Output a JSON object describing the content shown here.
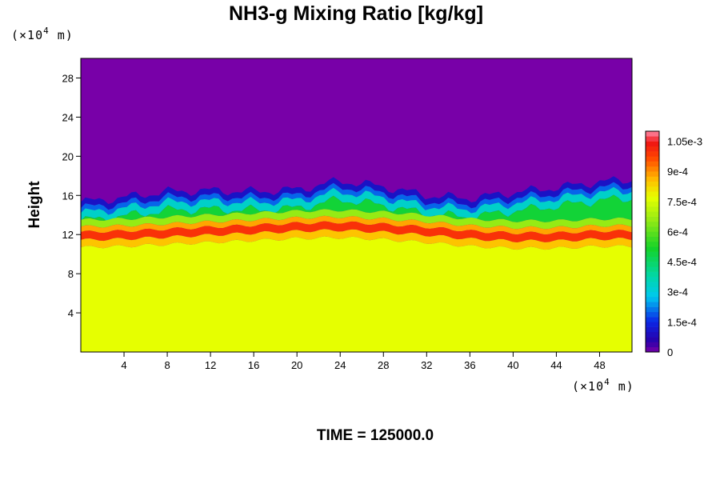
{
  "chart_data": {
    "type": "heatmap",
    "title": "NH3-g Mixing Ratio [kg/kg]",
    "xlabel": "",
    "ylabel": "Height",
    "x_unit": {
      "prefix": "(×10",
      "exp": "4",
      "suffix": " m)"
    },
    "y_unit": {
      "prefix": "(×10",
      "exp": "4",
      "suffix": " m)"
    },
    "xlim": [
      0,
      51
    ],
    "ylim": [
      0,
      30
    ],
    "x_ticks": [
      {
        "value": 4,
        "label": "4"
      },
      {
        "value": 8,
        "label": "8"
      },
      {
        "value": 12,
        "label": "12"
      },
      {
        "value": 16,
        "label": "16"
      },
      {
        "value": 20,
        "label": "20"
      },
      {
        "value": 24,
        "label": "24"
      },
      {
        "value": 28,
        "label": "28"
      },
      {
        "value": 32,
        "label": "32"
      },
      {
        "value": 36,
        "label": "36"
      },
      {
        "value": 40,
        "label": "40"
      },
      {
        "value": 44,
        "label": "44"
      },
      {
        "value": 48,
        "label": "48"
      }
    ],
    "y_ticks": [
      {
        "value": 4,
        "label": "4"
      },
      {
        "value": 8,
        "label": "8"
      },
      {
        "value": 12,
        "label": "12"
      },
      {
        "value": 16,
        "label": "16"
      },
      {
        "value": 20,
        "label": "20"
      },
      {
        "value": 24,
        "label": "24"
      },
      {
        "value": 28,
        "label": "28"
      }
    ],
    "colorbar": {
      "min": 0,
      "max": 0.0011,
      "levels": 44,
      "ticks": [
        {
          "value": 0,
          "label": "0"
        },
        {
          "value": 0.00015,
          "label": "1.5e-4"
        },
        {
          "value": 0.0003,
          "label": "3e-4"
        },
        {
          "value": 0.00045,
          "label": "4.5e-4"
        },
        {
          "value": 0.0006,
          "label": "6e-4"
        },
        {
          "value": 0.00075,
          "label": "7.5e-4"
        },
        {
          "value": 0.0009,
          "label": "9e-4"
        },
        {
          "value": 0.00105,
          "label": "1.05e-3"
        }
      ]
    },
    "field_profile": {
      "x": [
        0,
        4,
        8,
        12,
        16,
        20,
        24,
        28,
        32,
        36,
        40,
        44,
        48,
        51
      ],
      "top_height": [
        15.3,
        15.8,
        16.4,
        16.5,
        16.4,
        16.6,
        17.5,
        16.9,
        16.0,
        15.7,
        16.3,
        16.8,
        17.4,
        17.6
      ],
      "red_layer_height": [
        11.9,
        12.0,
        12.2,
        12.4,
        12.6,
        12.8,
        12.9,
        12.7,
        12.4,
        12.0,
        11.8,
        11.8,
        12.0,
        12.0
      ],
      "lower_region_value": 0.00077,
      "upper_region_value": 0.0
    },
    "grid": false,
    "legend": "right"
  },
  "footer": {
    "time_label": "TIME = 125000.0"
  }
}
